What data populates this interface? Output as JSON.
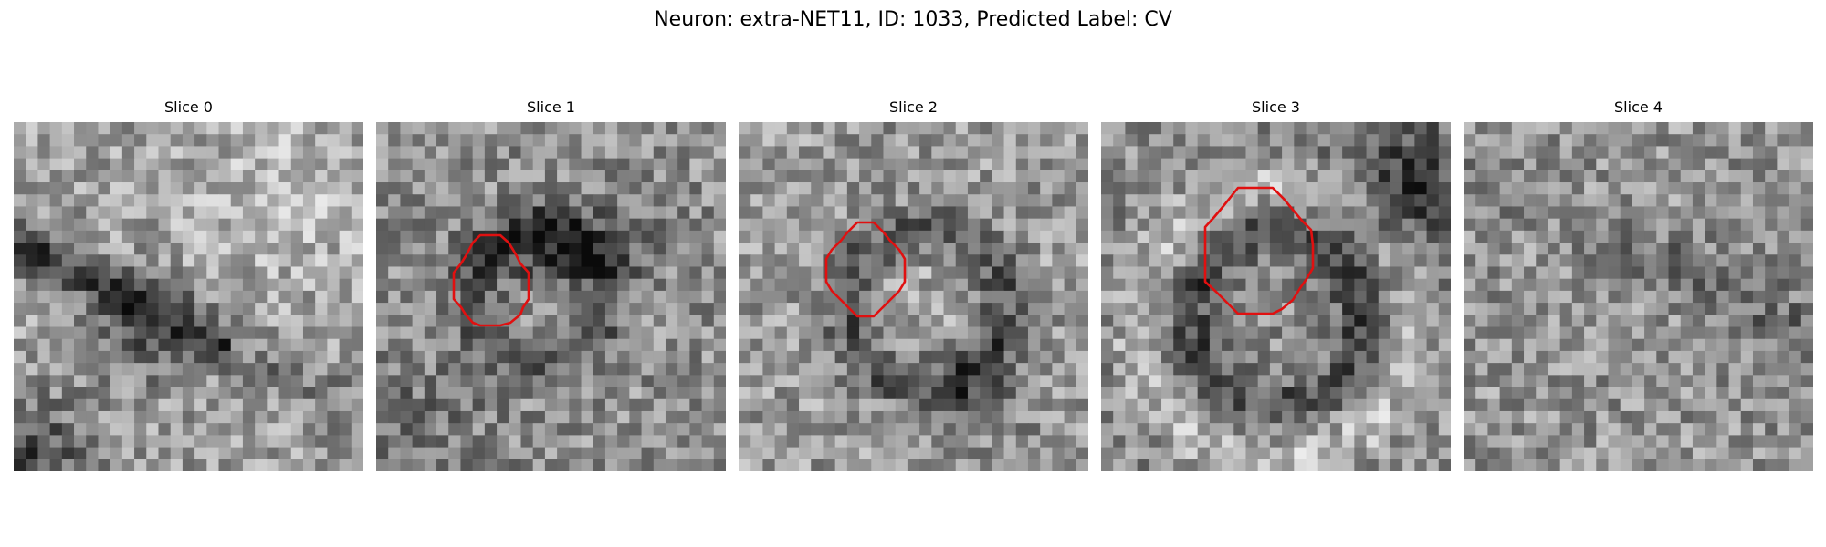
{
  "title": "Neuron: extra-NET11, ID: 1033, Predicted Label: CV",
  "roi_color": "#e01010",
  "slices": [
    {
      "label": "Slice 0",
      "has_roi": false
    },
    {
      "label": "Slice 1",
      "has_roi": true
    },
    {
      "label": "Slice 2",
      "has_roi": true
    },
    {
      "label": "Slice 3",
      "has_roi": true
    },
    {
      "label": "Slice 4",
      "has_roi": false
    }
  ]
}
